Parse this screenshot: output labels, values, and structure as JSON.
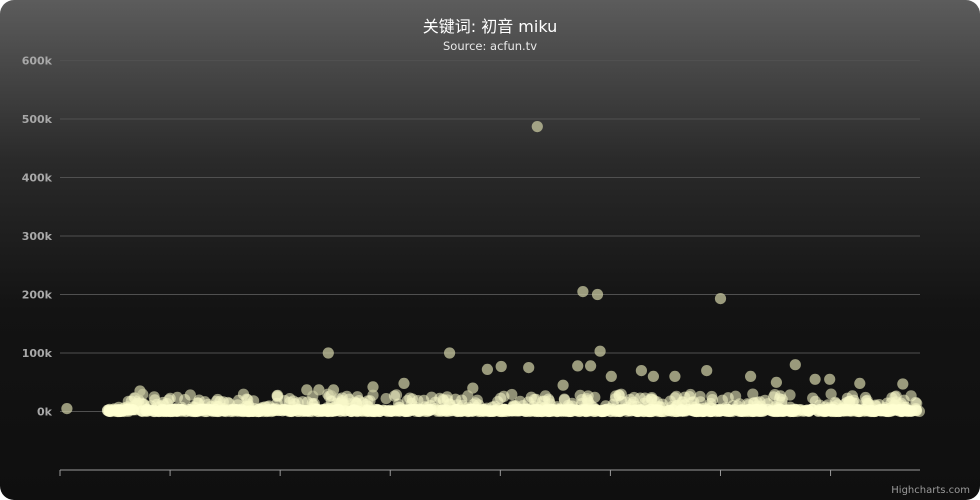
{
  "chart_data": {
    "type": "scatter",
    "title": "关键词: 初音 miku",
    "subtitle": "Source: acfun.tv",
    "xlabel": "",
    "ylabel": "",
    "xlim": [
      0,
      1000
    ],
    "ylim": [
      -100000,
      600000
    ],
    "y_ticks": [
      {
        "value": 0,
        "label": "0k"
      },
      {
        "value": 100000,
        "label": "100k"
      },
      {
        "value": 200000,
        "label": "200k"
      },
      {
        "value": 300000,
        "label": "300k"
      },
      {
        "value": 400000,
        "label": "400k"
      },
      {
        "value": 500000,
        "label": "500k"
      },
      {
        "value": 600000,
        "label": "600k"
      }
    ],
    "x_tick_values": [
      0,
      128,
      256,
      384,
      512,
      640,
      768,
      896
    ],
    "grid": true,
    "marker_color": "rgba(248,248,200,0.55)",
    "notable_points": [
      {
        "x": 8,
        "y": 5000
      },
      {
        "x": 93,
        "y": 35000
      },
      {
        "x": 312,
        "y": 100000
      },
      {
        "x": 453,
        "y": 100000
      },
      {
        "x": 555,
        "y": 487000
      },
      {
        "x": 608,
        "y": 205000
      },
      {
        "x": 625,
        "y": 200000
      },
      {
        "x": 628,
        "y": 103000
      },
      {
        "x": 617,
        "y": 78000
      },
      {
        "x": 602,
        "y": 78000
      },
      {
        "x": 768,
        "y": 193000
      },
      {
        "x": 855,
        "y": 80000
      },
      {
        "x": 752,
        "y": 70000
      },
      {
        "x": 676,
        "y": 70000
      },
      {
        "x": 513,
        "y": 77000
      },
      {
        "x": 545,
        "y": 75000
      },
      {
        "x": 497,
        "y": 72000
      },
      {
        "x": 803,
        "y": 60000
      },
      {
        "x": 930,
        "y": 48000
      },
      {
        "x": 690,
        "y": 60000
      },
      {
        "x": 715,
        "y": 60000
      },
      {
        "x": 895,
        "y": 55000
      },
      {
        "x": 878,
        "y": 55000
      },
      {
        "x": 980,
        "y": 47000
      },
      {
        "x": 833,
        "y": 50000
      },
      {
        "x": 400,
        "y": 48000
      },
      {
        "x": 364,
        "y": 42000
      },
      {
        "x": 318,
        "y": 37000
      },
      {
        "x": 301,
        "y": 37000
      },
      {
        "x": 287,
        "y": 37000
      },
      {
        "x": 480,
        "y": 40000
      },
      {
        "x": 585,
        "y": 45000
      },
      {
        "x": 641,
        "y": 60000
      }
    ],
    "bulk": {
      "x_range": [
        55,
        1000
      ],
      "y_range": [
        0,
        30000
      ],
      "count": 850
    }
  },
  "credits": "Highcharts.com"
}
